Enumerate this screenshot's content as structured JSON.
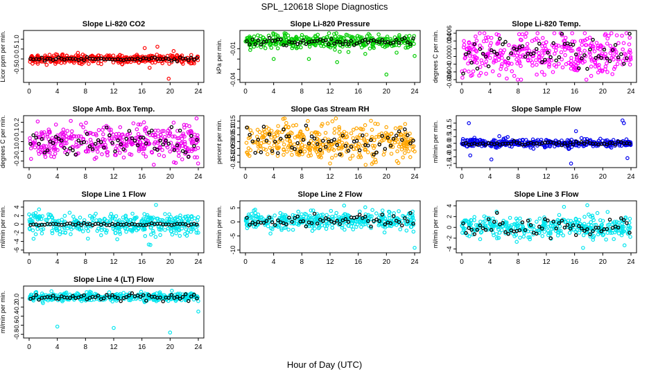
{
  "page_title": "SPL_120618  Slope Diagnostics",
  "shared_xlabel": "Hour of Day (UTC)",
  "colors": {
    "overlay": "#000000",
    "background": "#ffffff",
    "axis": "#000000"
  },
  "chart_data": [
    {
      "type": "scatter",
      "id": "li820-co2",
      "title": "Slope Li-820 CO2",
      "ylabel": "Licor ppm per min.",
      "color": "#ff0000",
      "xlim": [
        0,
        24
      ],
      "x_ticks": [
        0,
        4,
        8,
        12,
        16,
        20,
        24
      ],
      "ylim": [
        -1.05,
        1.3
      ],
      "y_ticks": [
        -0.5,
        0.0,
        0.5,
        1.0
      ],
      "y_tick_labels": [
        "-0.5",
        "0.0",
        "0.5",
        "1.0"
      ],
      "series": [
        {
          "name": "slope",
          "center": 0.0,
          "spread": 0.12,
          "outliers": [
            [
              16.4,
              0.55
            ],
            [
              18.2,
              0.62
            ],
            [
              19.8,
              -1.0
            ],
            [
              20.5,
              0.4
            ],
            [
              17.1,
              -0.45
            ]
          ]
        },
        {
          "name": "mean",
          "center": 0.0,
          "spread": 0.04,
          "overlay": true
        }
      ]
    },
    {
      "type": "scatter",
      "id": "li820-pressure",
      "title": "Slope Li-820 Pressure",
      "ylabel": "kPa per min.",
      "color": "#00cc00",
      "xlim": [
        0,
        24
      ],
      "x_ticks": [
        0,
        4,
        8,
        12,
        16,
        20,
        24
      ],
      "ylim": [
        -0.04,
        0.005
      ],
      "y_ticks": [
        -0.04,
        -0.03,
        -0.02,
        -0.01
      ],
      "y_tick_labels": [
        "-0.04",
        "",
        "",
        "-0.01"
      ],
      "series": [
        {
          "name": "slope",
          "center": -0.003,
          "spread": 0.0035,
          "outliers": [
            [
              4.0,
              -0.02
            ],
            [
              9.0,
              -0.02
            ],
            [
              13.0,
              -0.023
            ],
            [
              17.0,
              -0.015
            ],
            [
              20.0,
              -0.035
            ],
            [
              24.0,
              -0.017
            ]
          ]
        },
        {
          "name": "mean",
          "center": -0.003,
          "spread": 0.0015,
          "overlay": true
        }
      ]
    },
    {
      "type": "scatter",
      "id": "li820-temp",
      "title": "Slope Li-820 Temp.",
      "ylabel": "degrees C per min.",
      "color": "#ff00ff",
      "xlim": [
        0,
        24
      ],
      "x_ticks": [
        0,
        4,
        8,
        12,
        16,
        20,
        24
      ],
      "ylim": [
        -0.006,
        0.006
      ],
      "y_ticks": [
        -0.006,
        -0.004,
        -0.002,
        0.0,
        0.002,
        0.004,
        0.006
      ],
      "y_tick_labels": [
        "-0.006",
        "-0.004",
        "",
        "0.000",
        "",
        "0.004",
        "0.006"
      ],
      "series": [
        {
          "name": "slope",
          "center": 0.0005,
          "spread": 0.0028,
          "outliers": [
            [
              1.3,
              -0.005
            ],
            [
              20.3,
              0.0055
            ]
          ]
        },
        {
          "name": "mean",
          "center": 0.0005,
          "spread": 0.002,
          "overlay": true
        }
      ]
    },
    {
      "type": "scatter",
      "id": "amb-box-temp",
      "title": "Slope Amb. Box Temp.",
      "ylabel": "degrees C per min.",
      "color": "#ee00ee",
      "xlim": [
        0,
        24
      ],
      "x_ticks": [
        0,
        4,
        8,
        12,
        16,
        20,
        24
      ],
      "ylim": [
        -0.24,
        0.24
      ],
      "y_ticks": [
        -0.2,
        -0.1,
        0.0,
        0.1,
        0.2
      ],
      "y_tick_labels": [
        "-0.2",
        "-0.1",
        "0.0",
        "0.1",
        "0.2"
      ],
      "series": [
        {
          "name": "slope",
          "center": 0.0,
          "spread": 0.085,
          "outliers": [
            [
              16.3,
              0.2
            ],
            [
              20.8,
              -0.22
            ]
          ]
        },
        {
          "name": "mean",
          "center": 0.0,
          "spread": 0.07,
          "overlay": true
        }
      ]
    },
    {
      "type": "scatter",
      "id": "gas-stream-rh",
      "title": "Slope Gas Stream RH",
      "ylabel": "percent per min.",
      "color": "#ffa500",
      "xlim": [
        0,
        24
      ],
      "x_ticks": [
        0,
        4,
        8,
        12,
        16,
        20,
        24
      ],
      "ylim": [
        -0.17,
        0.17
      ],
      "y_ticks": [
        -0.15,
        -0.1,
        -0.05,
        0.0,
        0.05,
        0.1,
        0.15
      ],
      "y_tick_labels": [
        "-0.15",
        "-0.10",
        "-0.05",
        "0.00",
        "0.05",
        "0.10",
        "0.15"
      ],
      "series": [
        {
          "name": "slope",
          "center": 0.0,
          "spread": 0.065,
          "outliers": [
            [
              12.0,
              -0.16
            ],
            [
              18.5,
              -0.15
            ]
          ]
        },
        {
          "name": "mean",
          "center": 0.0,
          "spread": 0.055,
          "overlay": true
        }
      ]
    },
    {
      "type": "scatter",
      "id": "sample-flow",
      "title": "Slope Sample Flow",
      "ylabel": "ml/min per min.",
      "color": "#0000ee",
      "xlim": [
        0,
        24
      ],
      "x_ticks": [
        0,
        4,
        8,
        12,
        16,
        20,
        24
      ],
      "ylim": [
        -1.6,
        1.85
      ],
      "y_ticks": [
        -1.5,
        -1.0,
        -0.5,
        0.0,
        0.5,
        1.0,
        1.5
      ],
      "y_tick_labels": [
        "-1.5",
        "-1.0",
        "-0.5",
        "0.0",
        "0.5",
        "1.0",
        "1.5"
      ],
      "series": [
        {
          "name": "slope",
          "center": 0.0,
          "spread": 0.15,
          "outliers": [
            [
              1.0,
              1.5
            ],
            [
              1.2,
              -0.9
            ],
            [
              4.2,
              -1.2
            ],
            [
              15.5,
              -1.5
            ],
            [
              16.2,
              0.9
            ],
            [
              22.8,
              1.7
            ],
            [
              23.0,
              1.5
            ],
            [
              23.5,
              -1.1
            ]
          ]
        },
        {
          "name": "mean",
          "center": 0.0,
          "spread": 0.08,
          "overlay": true
        }
      ]
    },
    {
      "type": "scatter",
      "id": "line1-flow",
      "title": "Slope Line 1 Flow",
      "ylabel": "ml/min per min.",
      "color": "#00e5ee",
      "xlim": [
        0,
        24
      ],
      "x_ticks": [
        0,
        4,
        8,
        12,
        16,
        20,
        24
      ],
      "ylim": [
        -6,
        4.8
      ],
      "y_ticks": [
        -6,
        -4,
        -2,
        0,
        2,
        4
      ],
      "y_tick_labels": [
        "-6",
        "-4",
        "-2",
        "0",
        "2",
        "4"
      ],
      "series": [
        {
          "name": "slope",
          "center": 0.0,
          "spread": 1.3,
          "outliers": [
            [
              17.2,
              -4.8
            ],
            [
              18.0,
              4.5
            ],
            [
              12.5,
              -3.5
            ]
          ]
        },
        {
          "name": "mean",
          "center": 0.0,
          "spread": 0.12,
          "overlay": true
        }
      ]
    },
    {
      "type": "scatter",
      "id": "line2-flow",
      "title": "Slope Line 2 Flow",
      "ylabel": "ml/min per min.",
      "color": "#00e5ee",
      "xlim": [
        0,
        24
      ],
      "x_ticks": [
        0,
        4,
        8,
        12,
        16,
        20,
        24
      ],
      "ylim": [
        -10,
        6.5
      ],
      "y_ticks": [
        -10,
        -5,
        0,
        5
      ],
      "y_tick_labels": [
        "-10",
        "-5",
        "0",
        "5"
      ],
      "series": [
        {
          "name": "slope",
          "center": 0.5,
          "spread": 1.6,
          "outliers": [
            [
              24.0,
              -9.2
            ],
            [
              14.0,
              5.8
            ],
            [
              17.0,
              5.2
            ]
          ]
        },
        {
          "name": "mean",
          "center": 0.5,
          "spread": 1.1,
          "overlay": true
        }
      ]
    },
    {
      "type": "scatter",
      "id": "line3-flow",
      "title": "Slope Line 3 Flow",
      "ylabel": "ml/min per min.",
      "color": "#00e5ee",
      "xlim": [
        0,
        24
      ],
      "x_ticks": [
        0,
        4,
        8,
        12,
        16,
        20,
        24
      ],
      "ylim": [
        -4.2,
        4.4
      ],
      "y_ticks": [
        -4,
        -2,
        0,
        2,
        4
      ],
      "y_tick_labels": [
        "-4",
        "-2",
        "0",
        "2",
        "4"
      ],
      "series": [
        {
          "name": "slope",
          "center": 0.0,
          "spread": 1.0,
          "outliers": [
            [
              17.2,
              -3.8
            ],
            [
              14.5,
              3.8
            ],
            [
              17.8,
              4.1
            ]
          ]
        },
        {
          "name": "mean",
          "center": 0.0,
          "spread": 0.9,
          "overlay": true
        }
      ]
    },
    {
      "type": "scatter",
      "id": "line4-flow",
      "title": "Slope Line 4 (LT) Flow",
      "ylabel": "ml/min per min.",
      "color": "#00e5ee",
      "xlim": [
        0,
        24
      ],
      "x_ticks": [
        0,
        4,
        8,
        12,
        16,
        20,
        24
      ],
      "ylim": [
        -0.82,
        0.2
      ],
      "y_ticks": [
        -0.8,
        -0.6,
        -0.4,
        -0.2,
        0.0
      ],
      "y_tick_labels": [
        "-0.8",
        "-0.6",
        "-0.4",
        "-0.2",
        "0.0"
      ],
      "series": [
        {
          "name": "slope",
          "center": 0.02,
          "spread": 0.045,
          "outliers": [
            [
              4.0,
              -0.63
            ],
            [
              12.0,
              -0.66
            ],
            [
              20.0,
              -0.76
            ],
            [
              24.0,
              -0.3
            ]
          ]
        },
        {
          "name": "mean",
          "center": 0.02,
          "spread": 0.04,
          "overlay": true
        }
      ]
    }
  ]
}
